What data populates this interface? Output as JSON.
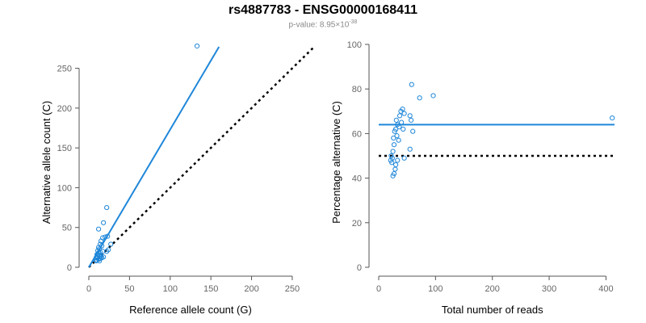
{
  "header": {
    "title": "rs4887783 - ENSG00000168411",
    "pvalue_prefix": "p-value: 8.95×10",
    "pvalue_exponent": "-38"
  },
  "colors": {
    "accent": "#1f87d9",
    "reference_line": "#000000",
    "axis": "#555555",
    "tick_text": "#666666"
  },
  "chart_data": [
    {
      "type": "scatter",
      "xlabel": "Reference allele count (G)",
      "ylabel": "Alternative allele count (C)",
      "xlim": [
        0,
        260
      ],
      "ylim": [
        0,
        280
      ],
      "xticks": [
        0,
        50,
        100,
        150,
        200,
        250
      ],
      "yticks": [
        0,
        50,
        100,
        150,
        200,
        250
      ],
      "grid": false,
      "points": [
        [
          133,
          278
        ],
        [
          22,
          75
        ],
        [
          18,
          56
        ],
        [
          12,
          48
        ],
        [
          20,
          38
        ],
        [
          23,
          39
        ],
        [
          17,
          37
        ],
        [
          15,
          33
        ],
        [
          14,
          29
        ],
        [
          16,
          27
        ],
        [
          12,
          25
        ],
        [
          13,
          23
        ],
        [
          11,
          21
        ],
        [
          17,
          20
        ],
        [
          14,
          19
        ],
        [
          12,
          18
        ],
        [
          10,
          16
        ],
        [
          13,
          15
        ],
        [
          15,
          14
        ],
        [
          11,
          13
        ],
        [
          9,
          12
        ],
        [
          16,
          12
        ],
        [
          14,
          11
        ],
        [
          12,
          10
        ],
        [
          10,
          9
        ],
        [
          13,
          8
        ],
        [
          18,
          13
        ],
        [
          27,
          29
        ],
        [
          24,
          22
        ],
        [
          22,
          20
        ],
        [
          11,
          16
        ],
        [
          14,
          13
        ],
        [
          9,
          8
        ]
      ],
      "fit_line": {
        "from": [
          0,
          0
        ],
        "to": [
          160,
          277
        ]
      },
      "reference_line": {
        "from": [
          0,
          0
        ],
        "to": [
          278,
          278
        ],
        "style": "dotted"
      }
    },
    {
      "type": "scatter",
      "xlabel": "Total number of reads",
      "ylabel": "Percentage alternative (C)",
      "xlim": [
        0,
        415
      ],
      "ylim": [
        0,
        100
      ],
      "xticks": [
        0,
        100,
        200,
        300,
        400
      ],
      "yticks": [
        0,
        20,
        40,
        60,
        80,
        100
      ],
      "grid": false,
      "points": [
        [
          411,
          67
        ],
        [
          58,
          82
        ],
        [
          96,
          77
        ],
        [
          72,
          76
        ],
        [
          42,
          71
        ],
        [
          39,
          70
        ],
        [
          45,
          69
        ],
        [
          37,
          68
        ],
        [
          55,
          68
        ],
        [
          57,
          66
        ],
        [
          31,
          66
        ],
        [
          40,
          65
        ],
        [
          33,
          64
        ],
        [
          36,
          63
        ],
        [
          30,
          62
        ],
        [
          43,
          62
        ],
        [
          28,
          61
        ],
        [
          60,
          61
        ],
        [
          32,
          59
        ],
        [
          26,
          58
        ],
        [
          35,
          57
        ],
        [
          27,
          55
        ],
        [
          25,
          52
        ],
        [
          22,
          50
        ],
        [
          24,
          49
        ],
        [
          21,
          48
        ],
        [
          23,
          47
        ],
        [
          30,
          46
        ],
        [
          29,
          44
        ],
        [
          27,
          42
        ],
        [
          25,
          41
        ],
        [
          45,
          49
        ],
        [
          55,
          53
        ],
        [
          33,
          48
        ]
      ],
      "fit_line": {
        "y": 64
      },
      "reference_line": {
        "y": 50,
        "style": "dotted"
      }
    }
  ]
}
